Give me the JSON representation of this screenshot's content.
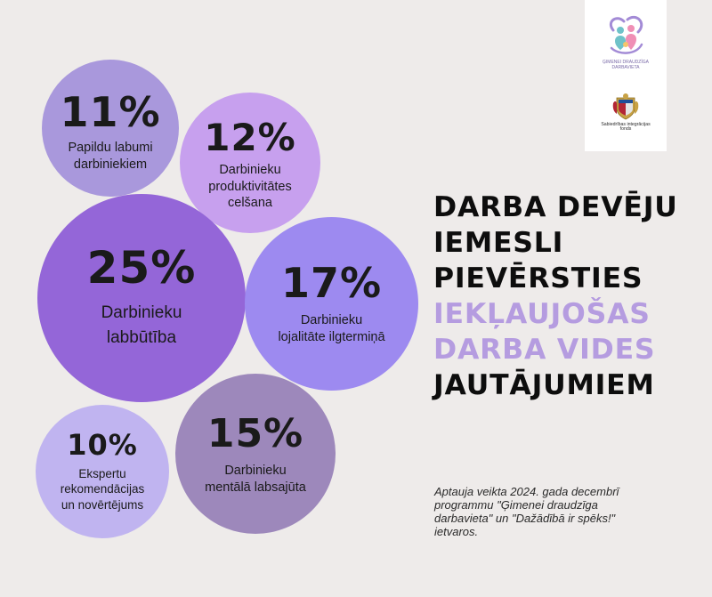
{
  "colors": {
    "background": "#eeebea",
    "bubble_11": "#a998dc",
    "bubble_12": "#c7a0ee",
    "bubble_25": "#9466d8",
    "bubble_17": "#9d8af0",
    "bubble_10": "#c0b4f0",
    "bubble_15": "#9d88bb",
    "headline_accent": "#b59ce0",
    "headline_text": "#0d0d0d"
  },
  "bubbles": [
    {
      "id": "b11",
      "percent": "11%",
      "label": "Papildu labumi darbiniekiem",
      "label_lines": [
        "Papildu labumi",
        "darbiniekiem"
      ]
    },
    {
      "id": "b12",
      "percent": "12%",
      "label": "Darbinieku produktivitātes celšana",
      "label_lines": [
        "Darbinieku",
        "produktivitātes",
        "celšana"
      ]
    },
    {
      "id": "b25",
      "percent": "25%",
      "label": "Darbinieku labbūtība",
      "label_lines": [
        "Darbinieku",
        "labbūtība"
      ]
    },
    {
      "id": "b17",
      "percent": "17%",
      "label": "Darbinieku lojalitāte ilgtermiņā",
      "label_lines": [
        "Darbinieku",
        "lojalitāte ilgtermiņā"
      ]
    },
    {
      "id": "b10",
      "percent": "10%",
      "label": "Ekspertu rekomendācijas un novērtējums",
      "label_lines": [
        "Ekspertu",
        "rekomendācijas",
        "un novērtējums"
      ]
    },
    {
      "id": "b15",
      "percent": "15%",
      "label": "Darbinieku mentālā labsajūta",
      "label_lines": [
        "Darbinieku",
        "mentālā labsajūta"
      ]
    }
  ],
  "headline": {
    "lines": [
      {
        "text": "DARBA DEVĒJU",
        "accent": false
      },
      {
        "text": "IEMESLI",
        "accent": false
      },
      {
        "text": "PIEVĒRSTIES",
        "accent": false
      },
      {
        "text": "IEKĻAUJOŠAS",
        "accent": true
      },
      {
        "text": "DARBA VIDES",
        "accent": true
      },
      {
        "text": "JAUTĀJUMIEM",
        "accent": false
      }
    ]
  },
  "note": {
    "lines": [
      "Aptauja veikta 2024. gada decembrī",
      "programmu \"Ģimenei draudzīga",
      "darbavieta\" un \"Dažādībā ir spēks!\"",
      "ietvaros."
    ]
  },
  "logos": {
    "family_logo_icon": "family-hearts-icon",
    "family_logo_text": [
      "ĢIMENEI DRAUDZĪGA",
      "DARBAVIETA"
    ],
    "coat_of_arms_icon": "latvia-coat-of-arms-icon",
    "coat_of_arms_text": [
      "Sabiedrības integrācijas",
      "fonds"
    ]
  }
}
